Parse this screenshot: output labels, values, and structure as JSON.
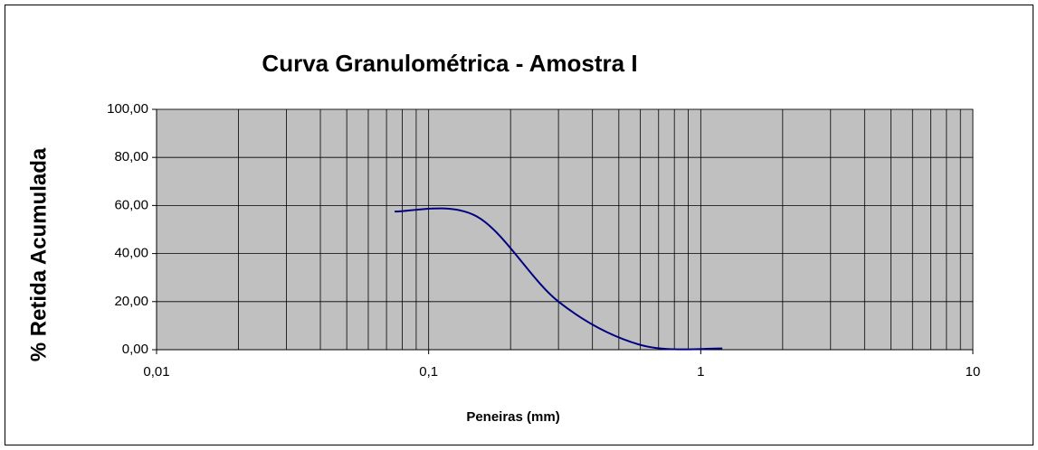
{
  "chart_data": {
    "type": "line",
    "title": "Curva Granulométrica  -  Amostra I",
    "x_label": "Peneiras (mm)",
    "y_label": "% Retida Acumulada",
    "x": [
      0.075,
      0.15,
      0.3,
      0.6,
      1.2
    ],
    "series": [
      {
        "name": "Amostra I",
        "color": "#000080",
        "values": [
          57.5,
          55.5,
          20,
          2,
          0.5
        ]
      }
    ],
    "xscale": "log",
    "xlim": [
      0.01,
      10
    ],
    "xticks": [
      {
        "value": 0.01,
        "label": "0,01"
      },
      {
        "value": 0.1,
        "label": "0,1"
      },
      1,
      10
    ],
    "ylim": [
      0,
      100
    ],
    "yticks": [
      {
        "value": 0,
        "label": "0,00"
      },
      {
        "value": 20,
        "label": "20,00"
      },
      {
        "value": 40,
        "label": "40,00"
      },
      {
        "value": 60,
        "label": "60,00"
      },
      {
        "value": 80,
        "label": "80,00"
      },
      {
        "value": 100,
        "label": "100,00"
      }
    ],
    "grid": true,
    "minor_grid": true,
    "plot_background": "#c0c0c0",
    "legend": false
  }
}
